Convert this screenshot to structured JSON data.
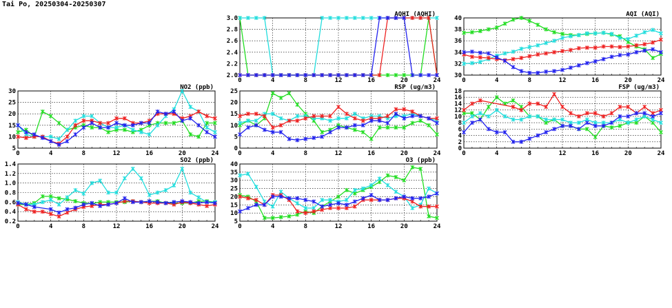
{
  "page": {
    "title": "Tai Po, 20250304-20250307"
  },
  "colors": {
    "green": "#22dd22",
    "cyan": "#22dddd",
    "red": "#ee2222",
    "blue": "#2222ee"
  },
  "chart_data": [
    {
      "id": "aqhi",
      "type": "line",
      "title": "AQHI (AQHI)",
      "xlim": [
        0,
        24
      ],
      "ylim": [
        2.0,
        3.0
      ],
      "xticks": [
        "0",
        "4",
        "8",
        "12",
        "16",
        "20",
        "24"
      ],
      "yticks": [
        "2.0",
        "2.2",
        "2.4",
        "2.6",
        "2.8",
        "3.0"
      ],
      "grid": true,
      "x": [
        0,
        1,
        2,
        3,
        4,
        5,
        6,
        7,
        8,
        9,
        10,
        11,
        12,
        13,
        14,
        15,
        16,
        17,
        18,
        19,
        20,
        21,
        22,
        23,
        24
      ],
      "series": [
        {
          "color": "green",
          "values": [
            3,
            2,
            2,
            2,
            2,
            2,
            2,
            2,
            2,
            2,
            2,
            2,
            2,
            2,
            2,
            2,
            2,
            2,
            2,
            2,
            2,
            2,
            2,
            3,
            2
          ]
        },
        {
          "color": "cyan",
          "values": [
            3,
            3,
            3,
            3,
            2,
            2,
            2,
            2,
            2,
            2,
            3,
            3,
            3,
            3,
            3,
            3,
            3,
            3,
            3,
            3,
            3,
            3,
            3,
            3,
            3
          ]
        },
        {
          "color": "red",
          "values": [
            2,
            2,
            2,
            2,
            2,
            2,
            2,
            2,
            2,
            2,
            2,
            2,
            2,
            2,
            2,
            2,
            2,
            2,
            3,
            3,
            3,
            3,
            3,
            3,
            2
          ]
        },
        {
          "color": "blue",
          "values": [
            2,
            2,
            2,
            2,
            2,
            2,
            2,
            2,
            2,
            2,
            2,
            2,
            2,
            2,
            2,
            2,
            2,
            3,
            3,
            3,
            3,
            2,
            2,
            2,
            2
          ]
        }
      ]
    },
    {
      "id": "aqi",
      "type": "line",
      "title": "AQI (AQI)",
      "xlim": [
        0,
        24
      ],
      "ylim": [
        30,
        40
      ],
      "xticks": [
        "0",
        "4",
        "8",
        "12",
        "16",
        "20",
        "24"
      ],
      "yticks": [
        "30",
        "32",
        "34",
        "36",
        "38",
        "40"
      ],
      "grid": true,
      "x": [
        0,
        1,
        2,
        3,
        4,
        5,
        6,
        7,
        8,
        9,
        10,
        11,
        12,
        13,
        14,
        15,
        16,
        17,
        18,
        19,
        20,
        21,
        22,
        23,
        24
      ],
      "series": [
        {
          "color": "green",
          "values": [
            37.4,
            37.5,
            37.7,
            38.0,
            38.3,
            39.0,
            39.7,
            40.0,
            39.5,
            38.8,
            38.0,
            37.5,
            37.2,
            37.0,
            37.0,
            37.2,
            37.3,
            37.4,
            37.1,
            36.8,
            35.8,
            35.0,
            34.5,
            33.0,
            33.7
          ]
        },
        {
          "color": "cyan",
          "values": [
            32.0,
            32.1,
            32.3,
            32.8,
            33.4,
            33.8,
            34.1,
            34.6,
            34.9,
            35.2,
            35.6,
            36.0,
            36.5,
            36.8,
            37.0,
            37.3,
            37.3,
            37.4,
            37.2,
            36.5,
            36.3,
            36.9,
            37.5,
            37.9,
            37.3
          ]
        },
        {
          "color": "red",
          "values": [
            33.6,
            33.2,
            33.1,
            33.0,
            32.8,
            32.6,
            32.8,
            33.0,
            33.3,
            33.6,
            33.8,
            34.0,
            34.2,
            34.4,
            34.7,
            34.8,
            34.8,
            35.0,
            35.0,
            34.9,
            35.0,
            35.2,
            35.4,
            35.7,
            36.2
          ]
        },
        {
          "color": "blue",
          "values": [
            34.0,
            34.1,
            33.9,
            33.8,
            33.1,
            32.5,
            31.4,
            30.7,
            30.4,
            30.4,
            30.6,
            30.7,
            30.9,
            31.3,
            31.7,
            32.1,
            32.4,
            32.8,
            33.2,
            33.5,
            33.6,
            34.0,
            34.3,
            34.5,
            34.0
          ]
        }
      ]
    },
    {
      "id": "no2",
      "type": "line",
      "title": "NO2 (ppb)",
      "xlim": [
        0,
        24
      ],
      "ylim": [
        5,
        30
      ],
      "xticks": [
        "0",
        "4",
        "8",
        "12",
        "16",
        "20",
        "24"
      ],
      "yticks": [
        "5",
        "10",
        "15",
        "20",
        "25",
        "30"
      ],
      "grid": true,
      "x": [
        0,
        1,
        2,
        3,
        4,
        5,
        6,
        7,
        8,
        9,
        10,
        11,
        12,
        13,
        14,
        15,
        16,
        17,
        18,
        19,
        20,
        21,
        22,
        23,
        24
      ],
      "series": [
        {
          "color": "green",
          "values": [
            12,
            13,
            10,
            21,
            19,
            16,
            13,
            14,
            15,
            14,
            14,
            12,
            13,
            13,
            12,
            13,
            15,
            16,
            16,
            16,
            17,
            11,
            10,
            16,
            16
          ]
        },
        {
          "color": "cyan",
          "values": [
            15,
            11,
            10,
            10,
            10,
            9,
            13,
            17,
            19,
            19,
            16,
            14,
            14,
            15,
            13,
            12,
            11,
            15,
            19,
            22,
            30,
            23,
            21,
            14,
            12
          ]
        },
        {
          "color": "red",
          "values": [
            10,
            9.5,
            10,
            10,
            8,
            7,
            10,
            15,
            17,
            17,
            16,
            16,
            18,
            18,
            16,
            16,
            17,
            20,
            20,
            20,
            18,
            19,
            21,
            19,
            18
          ]
        },
        {
          "color": "blue",
          "values": [
            15,
            12,
            11,
            9.5,
            8,
            6.5,
            8,
            11,
            14,
            16,
            14,
            14,
            16,
            15,
            15,
            16,
            16,
            21,
            20,
            21,
            17,
            18,
            15,
            12,
            10
          ]
        }
      ]
    },
    {
      "id": "rsp",
      "type": "line",
      "title": "RSP (ug/m3)",
      "xlim": [
        0,
        24
      ],
      "ylim": [
        0,
        25
      ],
      "xticks": [
        "0",
        "4",
        "8",
        "12",
        "16",
        "20",
        "24"
      ],
      "yticks": [
        "0",
        "5",
        "10",
        "15",
        "20",
        "25"
      ],
      "grid": true,
      "x": [
        0,
        1,
        2,
        3,
        4,
        5,
        6,
        7,
        8,
        9,
        10,
        11,
        12,
        13,
        14,
        15,
        16,
        17,
        18,
        19,
        20,
        21,
        22,
        23,
        24
      ],
      "series": [
        {
          "color": "green",
          "values": [
            10,
            12,
            10,
            13,
            24,
            22,
            24,
            19,
            15,
            12,
            7,
            8,
            10,
            9,
            8,
            7,
            4,
            9,
            9,
            9,
            9,
            11,
            12,
            10,
            6
          ]
        },
        {
          "color": "cyan",
          "values": [
            11,
            12,
            12,
            15,
            15,
            13,
            12,
            14,
            14,
            13,
            13,
            12,
            13,
            13,
            15,
            13,
            14,
            14,
            13,
            14,
            14,
            15,
            14,
            13,
            12
          ]
        },
        {
          "color": "red",
          "values": [
            14,
            15,
            15,
            14,
            9,
            10,
            12,
            12,
            13,
            14,
            14,
            14,
            18,
            15,
            13,
            12,
            13,
            13,
            14,
            17,
            17,
            16,
            14,
            13,
            13
          ]
        },
        {
          "color": "blue",
          "values": [
            6,
            9,
            10,
            8,
            7,
            7,
            4,
            3.5,
            4,
            4.5,
            5,
            7,
            9,
            9,
            10,
            10,
            12,
            12,
            11,
            15,
            13,
            14,
            14,
            13,
            11
          ]
        }
      ]
    },
    {
      "id": "fsp",
      "type": "line",
      "title": "FSP (ug/m3)",
      "xlim": [
        0,
        24
      ],
      "ylim": [
        0,
        18
      ],
      "xticks": [
        "0",
        "4",
        "8",
        "12",
        "16",
        "20",
        "24"
      ],
      "yticks": [
        "0",
        "2",
        "4",
        "6",
        "8",
        "10",
        "12",
        "14",
        "16",
        "18"
      ],
      "grid": true,
      "x": [
        0,
        1,
        2,
        3,
        4,
        5,
        6,
        7,
        8,
        9,
        10,
        11,
        12,
        13,
        14,
        15,
        16,
        17,
        18,
        19,
        20,
        21,
        22,
        23,
        24
      ],
      "series": [
        {
          "color": "green",
          "values": [
            11,
            11,
            9,
            13,
            16,
            14,
            15,
            13,
            10,
            10,
            8,
            9,
            7,
            7,
            6,
            6,
            3.5,
            7,
            6.5,
            7,
            8,
            8,
            10,
            8,
            5
          ]
        },
        {
          "color": "cyan",
          "values": [
            8,
            10,
            11,
            10,
            12,
            10,
            9,
            9,
            10,
            10,
            9,
            9,
            9,
            8,
            8,
            9,
            8,
            8,
            8,
            9,
            8,
            9,
            10,
            9,
            8
          ]
        },
        {
          "color": "red",
          "values": [
            12,
            14,
            15,
            null,
            null,
            null,
            13,
            12,
            14,
            14,
            13,
            17,
            13,
            11,
            10,
            11,
            11,
            10,
            11,
            13,
            13,
            11,
            13,
            11,
            12
          ]
        },
        {
          "color": "blue",
          "values": [
            5,
            8,
            9,
            6,
            5,
            5,
            2,
            2,
            3,
            4,
            5,
            6,
            7,
            7,
            6,
            8,
            7,
            7,
            8,
            10,
            10,
            11,
            11,
            10,
            11
          ]
        }
      ]
    },
    {
      "id": "so2",
      "type": "line",
      "title": "SO2 (ppb)",
      "xlim": [
        0,
        24
      ],
      "ylim": [
        0.2,
        1.4
      ],
      "xticks": [
        "0",
        "4",
        "8",
        "12",
        "16",
        "20",
        "24"
      ],
      "yticks": [
        "0.2",
        "0.4",
        "0.6",
        "0.8",
        "1.0",
        "1.2",
        "1.4"
      ],
      "grid": true,
      "x": [
        0,
        1,
        2,
        3,
        4,
        5,
        6,
        7,
        8,
        9,
        10,
        11,
        12,
        13,
        14,
        15,
        16,
        17,
        18,
        19,
        20,
        21,
        22,
        23,
        24
      ],
      "series": [
        {
          "color": "green",
          "values": [
            0.55,
            0.55,
            0.58,
            0.72,
            0.72,
            0.68,
            0.66,
            0.62,
            0.58,
            0.57,
            0.6,
            0.6,
            0.6,
            0.6,
            0.62,
            0.6,
            0.62,
            0.62,
            0.58,
            0.58,
            0.58,
            0.58,
            0.62,
            0.62,
            0.6
          ]
        },
        {
          "color": "cyan",
          "values": [
            0.6,
            0.55,
            0.55,
            0.6,
            0.65,
            0.55,
            0.7,
            0.85,
            0.78,
            1.0,
            1.05,
            0.8,
            0.8,
            1.1,
            1.3,
            1.1,
            0.75,
            0.8,
            0.85,
            0.95,
            1.3,
            0.8,
            0.7,
            0.6,
            0.6
          ]
        },
        {
          "color": "red",
          "values": [
            0.55,
            0.45,
            0.4,
            0.4,
            0.35,
            0.3,
            0.38,
            0.45,
            0.5,
            0.52,
            0.55,
            0.55,
            0.58,
            0.62,
            0.62,
            0.6,
            0.58,
            0.58,
            0.58,
            0.55,
            0.6,
            0.58,
            0.55,
            0.52,
            0.55
          ]
        },
        {
          "color": "blue",
          "values": [
            0.58,
            0.55,
            0.5,
            null,
            0.45,
            0.38,
            0.45,
            0.48,
            0.55,
            0.58,
            0.52,
            0.55,
            0.58,
            0.68,
            0.6,
            0.6,
            0.62,
            0.6,
            0.58,
            0.6,
            0.62,
            0.6,
            0.58,
            0.6,
            0.58
          ]
        }
      ]
    },
    {
      "id": "o3",
      "type": "line",
      "title": "O3 (ppb)",
      "xlim": [
        0,
        24
      ],
      "ylim": [
        5,
        40
      ],
      "xticks": [
        "0",
        "4",
        "8",
        "12",
        "16",
        "20",
        "24"
      ],
      "yticks": [
        "5",
        "10",
        "15",
        "20",
        "25",
        "30",
        "35",
        "40"
      ],
      "grid": true,
      "x": [
        0,
        1,
        2,
        3,
        4,
        5,
        6,
        7,
        8,
        9,
        10,
        11,
        12,
        13,
        14,
        15,
        16,
        17,
        18,
        19,
        20,
        21,
        22,
        23,
        24
      ],
      "series": [
        {
          "color": "green",
          "values": [
            21,
            20,
            17,
            7,
            7,
            7.5,
            8,
            9,
            11,
            10,
            14,
            17,
            20,
            24,
            22,
            24,
            26,
            29,
            33,
            32,
            30,
            38,
            37,
            8,
            7
          ]
        },
        {
          "color": "cyan",
          "values": [
            33,
            34,
            26,
            17,
            14,
            23,
            19,
            16,
            13,
            13,
            18,
            18,
            17,
            18,
            24,
            25,
            27,
            31,
            27,
            23,
            20,
            13,
            15,
            25,
            22
          ]
        },
        {
          "color": "red",
          "values": [
            20,
            19,
            18,
            15,
            21,
            21,
            18,
            11,
            10,
            11,
            12,
            13,
            13,
            13,
            14,
            18,
            18,
            18,
            18,
            19,
            19,
            17,
            14,
            14,
            14
          ]
        },
        {
          "color": "blue",
          "values": [
            11,
            13,
            15,
            15,
            20,
            20,
            19,
            19,
            18,
            17,
            14,
            15,
            16,
            15,
            17,
            19,
            21,
            18,
            18,
            19,
            20,
            19,
            19,
            20,
            22
          ]
        }
      ]
    }
  ]
}
